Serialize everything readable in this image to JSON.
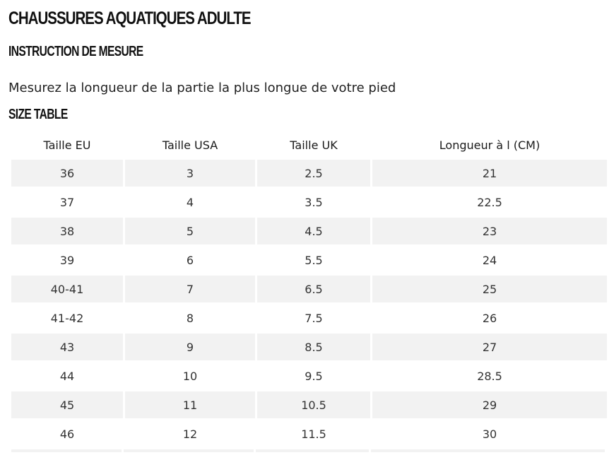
{
  "page": {
    "title": "CHAUSSURES AQUATIQUES ADULTE",
    "measure_heading": "INSTRUCTION DE MESURE",
    "measure_instruction": "Mesurez la longueur de la partie la plus longue de votre pied",
    "table_heading": "SIZE TABLE"
  },
  "size_table": {
    "headers": [
      "Taille EU",
      "Taille USA",
      "Taille UK",
      "Longueur à l (CM)"
    ],
    "rows": [
      [
        "36",
        "3",
        "2.5",
        "21"
      ],
      [
        "37",
        "4",
        "3.5",
        "22.5"
      ],
      [
        "38",
        "5",
        "4.5",
        "23"
      ],
      [
        "39",
        "6",
        "5.5",
        "24"
      ],
      [
        "40-41",
        "7",
        "6.5",
        "25"
      ],
      [
        "41-42",
        "8",
        "7.5",
        "26"
      ],
      [
        "43",
        "9",
        "8.5",
        "27"
      ],
      [
        "44",
        "10",
        "9.5",
        "28.5"
      ],
      [
        "45",
        "11",
        "10.5",
        "29"
      ],
      [
        "46",
        "12",
        "11.5",
        "30"
      ]
    ],
    "stripe_color": "#f2f2f2"
  }
}
